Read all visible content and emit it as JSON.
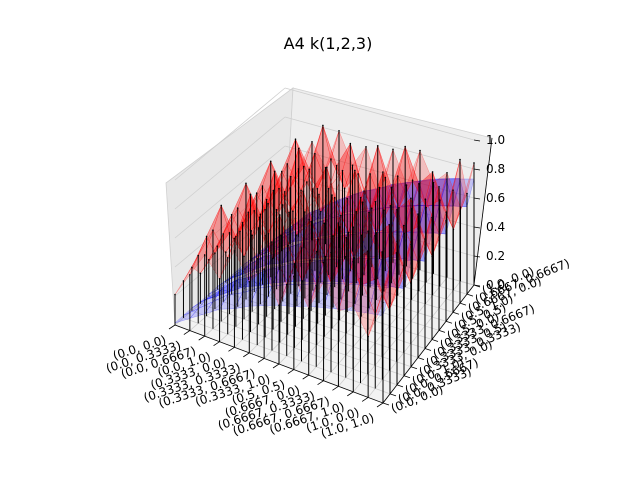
{
  "chart_data": {
    "type": "3d-surface",
    "title": "A4 k(1,2,3)",
    "xlabel": "",
    "ylabel": "",
    "zlabel": "",
    "x_tick_labels": [
      "(0.0, 0.0)",
      "(0.0, 0.3333)",
      "(0.0, 0.6667)",
      "(0.0, 1.0)",
      "(0.3333, 0.0)",
      "(0.3333, 0.3333)",
      "(0.3333, 0.6667)",
      "(0.3333, 1.0)",
      "(0.5, 0.5)",
      "(0.6667, 0.0)",
      "(0.6667, 0.3333)",
      "(0.6667, 0.6667)",
      "(0.6667, 1.0)",
      "(1.0, 0.0)",
      "(1.0, 1.0)"
    ],
    "y_tick_labels": [
      "(0.0, 0.0)",
      "(0.0, 0.3333)",
      "(0.0, 0.6667)",
      "(0.0, 1.0)",
      "(0.3333, 0.0)",
      "(0.3333, 0.3333)",
      "(0.3333, 0.5)",
      "(0.3333, 0.6667)",
      "(0.5, 0.0)",
      "(0.5, 0.5)",
      "(0.5, 1.0)",
      "(0.6667, 0.0)",
      "(0.6667, 0.6667)",
      "(1.0, 0.0)"
    ],
    "z_ticks": [
      0.0,
      0.2,
      0.4,
      0.6,
      0.8,
      1.0
    ],
    "zlim": [
      0,
      1
    ],
    "grid": true,
    "series": [
      {
        "name": "",
        "color": "#ff0000",
        "values": [
          0.3,
          0.55,
          0.8,
          0.62,
          0.95,
          0.7,
          0.88,
          0.58,
          0.92,
          0.66,
          0.97,
          0.74,
          0.85,
          0.6,
          0.99
        ]
      },
      {
        "name": "",
        "color": "#0000ff",
        "values": [
          0.02,
          0.12,
          0.22,
          0.32,
          0.38,
          0.46,
          0.52,
          0.58,
          0.62,
          0.68,
          0.72,
          0.76,
          0.8,
          0.83,
          0.86
        ]
      }
    ],
    "stem_color": "#000000"
  }
}
